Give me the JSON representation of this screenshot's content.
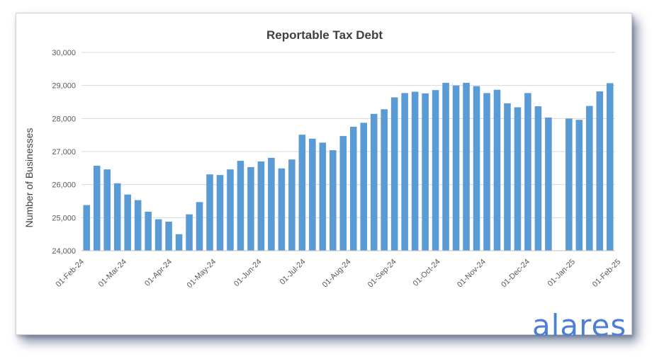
{
  "brand": {
    "logo_text": "alares",
    "color": "#4f7fd4"
  },
  "chart_data": {
    "type": "bar",
    "title": "Reportable Tax Debt",
    "xlabel": "",
    "ylabel": "Number of Businesses",
    "ylim": [
      24000,
      30000
    ],
    "yticks": [
      "24,000",
      "25,000",
      "26,000",
      "27,000",
      "28,000",
      "29,000",
      "30,000"
    ],
    "ytick_values": [
      24000,
      25000,
      26000,
      27000,
      28000,
      29000,
      30000
    ],
    "xticks": [
      "01-Feb-24",
      "01-Mar-24",
      "01-Apr-24",
      "01-May-24",
      "01-Jun-24",
      "01-Jul-24",
      "01-Aug-24",
      "01-Sep-24",
      "01-Oct-24",
      "01-Nov-24",
      "01-Dec-24",
      "01-Jan-25",
      "01-Feb-25"
    ],
    "xtick_weeks": [
      0,
      4.14,
      8.57,
      12.86,
      17.29,
      21.57,
      26,
      30.43,
      34.71,
      39.14,
      43.43,
      47.86,
      52.29
    ],
    "grid": true,
    "bar_color": "#5b9bd5",
    "series": [
      {
        "values": [
          25380,
          26570,
          26460,
          26040,
          25700,
          25530,
          25180,
          24950,
          24880,
          24500,
          25100,
          25470,
          26310,
          26290,
          26460,
          26720,
          26530,
          26700,
          26810,
          26490,
          26760,
          27510,
          27390,
          27270,
          27040,
          27470,
          27750,
          27870,
          28140,
          28280,
          28640,
          28770,
          28810,
          28760,
          28860,
          29080,
          29000,
          29080,
          28980,
          28770,
          28870,
          28460,
          28340,
          28770,
          28370,
          28030,
          null,
          28000,
          27960,
          28380,
          28820,
          29070
        ]
      }
    ]
  }
}
